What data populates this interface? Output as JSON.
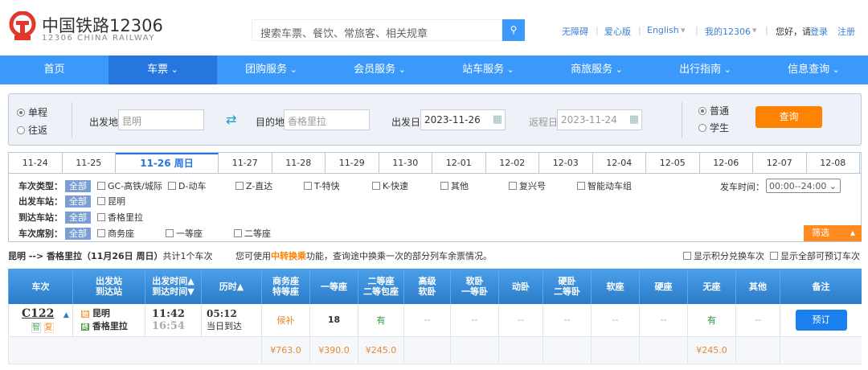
{
  "header": {
    "brand": "中国铁路12306",
    "brand_en": "12306 CHINA RAILWAY",
    "search_placeholder": "搜索车票、餐饮、常旅客、相关规章",
    "links": [
      "无障碍",
      "爱心版",
      "English",
      "我的12306"
    ],
    "greeting": "您好，请",
    "login": "登录",
    "register": "注册"
  },
  "nav": [
    "首页",
    "车票",
    "团购服务",
    "会员服务",
    "站车服务",
    "商旅服务",
    "出行指南",
    "信息查询"
  ],
  "nav_active": 1,
  "search": {
    "one_way": "单程",
    "round_trip": "往返",
    "from_label": "出发地",
    "from": "昆明",
    "to_label": "目的地",
    "to": "香格里拉",
    "date_label": "出发日",
    "date": "2023-11-26",
    "return_label": "返程日",
    "return_date": "2023-11-24",
    "normal": "普通",
    "student": "学生",
    "query": "查询"
  },
  "dates": [
    "11-24",
    "11-25",
    "11-26 周日",
    "11-27",
    "11-28",
    "11-29",
    "11-30",
    "12-01",
    "12-02",
    "12-03",
    "12-04",
    "12-05",
    "12-06",
    "12-07",
    "12-08"
  ],
  "date_active": 2,
  "filter": {
    "all": "全部",
    "type_label": "车次类型：",
    "types": [
      "GC-高铁/城际",
      "D-动车",
      "Z-直达",
      "T-特快",
      "K-快速",
      "其他",
      "复兴号",
      "智能动车组"
    ],
    "from_label": "出发车站：",
    "from_stations": [
      "昆明"
    ],
    "to_label": "到达车站：",
    "to_stations": [
      "香格里拉"
    ],
    "seat_label": "车次席别：",
    "seats": [
      "商务座",
      "一等座",
      "二等座"
    ],
    "time_label": "发车时间：",
    "time_value": "00:00--24:00",
    "screen": "筛选"
  },
  "summary": {
    "route": "昆明 --> 香格里拉（11月26日  周日）",
    "count": "共计1个车次",
    "tip_pre": "您可使用",
    "tip_link": "中转换乘",
    "tip_post": "功能，查询途中换乘一次的部分列车余票情况。",
    "opt1": "显示积分兑换车次",
    "opt2": "显示全部可预订车次"
  },
  "table": {
    "headers": [
      "车次",
      "出发站\n到达站",
      "出发时间▲\n到达时间▼",
      "历时▲",
      "商务座\n特等座",
      "一等座",
      "二等座\n二等包座",
      "高级\n软卧",
      "软卧\n一等卧",
      "动卧",
      "硬卧\n二等卧",
      "软座",
      "硬座",
      "无座",
      "其他",
      "备注"
    ],
    "train": {
      "no": "C122",
      "tags": [
        "智",
        "复"
      ],
      "from": "昆明",
      "to": "香格里拉",
      "from_tag": "始",
      "to_tag": "终",
      "dep": "11:42",
      "arr": "16:54",
      "duration": "05:12",
      "arrive_day": "当日到达",
      "seats": [
        "候补",
        "18",
        "有",
        "--",
        "--",
        "--",
        "--",
        "--",
        "--",
        "有",
        "--"
      ],
      "prices": [
        "¥763.0",
        "¥390.0",
        "¥245.0",
        "",
        "",
        "",
        "",
        "",
        "",
        "¥245.0",
        ""
      ],
      "book": "预订"
    }
  },
  "colors": {
    "nav": "#3b99fc",
    "accent": "#ff8200",
    "available": "#2a9d3c",
    "price": "#e8892c"
  }
}
